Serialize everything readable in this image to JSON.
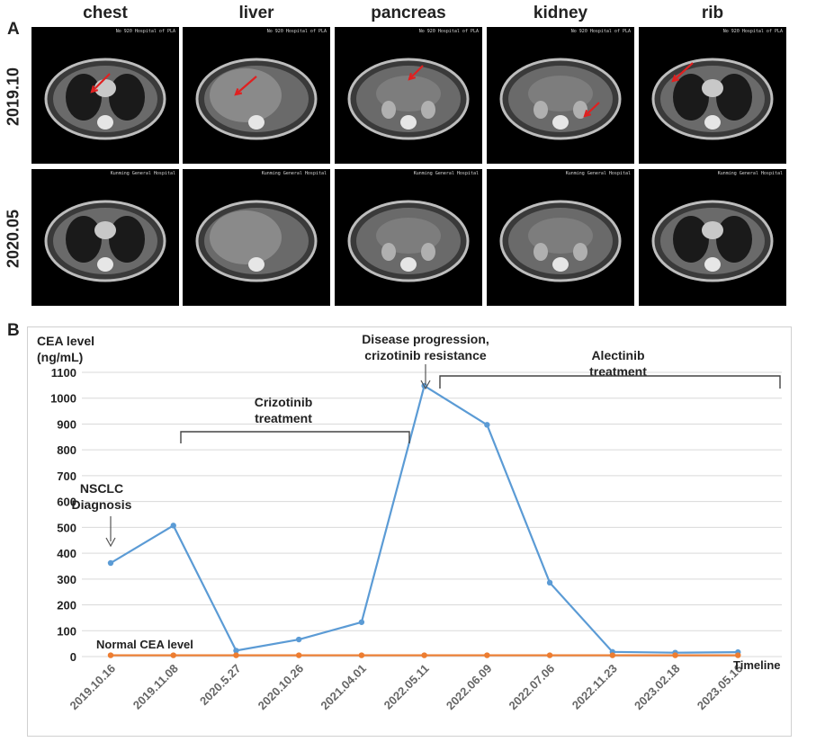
{
  "panel_a": {
    "label": "A",
    "columns": [
      "chest",
      "liver",
      "pancreas",
      "kidney",
      "rib"
    ],
    "rows": [
      "2019.10",
      "2020.05"
    ],
    "scan_hospital_row1": "No 920 Hospital of PLA",
    "scan_hospital_row2": "Kunming General Hospital"
  },
  "panel_b": {
    "label": "B"
  },
  "colors": {
    "cea_series": "#5b9bd5",
    "normal_series": "#ed7d31",
    "arrow_red": "#e02020"
  },
  "chart_data": {
    "type": "line",
    "ylabel_line1": "CEA level",
    "ylabel_line2": "(ng/mL)",
    "xlabel": "Timeline",
    "ylim": [
      0,
      1100
    ],
    "yticks": [
      0,
      100,
      200,
      300,
      400,
      500,
      600,
      700,
      800,
      900,
      1000,
      1100
    ],
    "categories": [
      "2019.10.16",
      "2019.11.08",
      "2020.5.27",
      "2020.10.26",
      "2021.04.01",
      "2022.05.11",
      "2022.06.09",
      "2022.07.06",
      "2022.11.23",
      "2023.02.18",
      "2023.05.16"
    ],
    "series": [
      {
        "values": [
          362,
          507,
          23,
          66,
          133,
          1048,
          897,
          286,
          18,
          15,
          17
        ]
      },
      {
        "values": [
          5,
          5,
          5,
          5,
          5,
          5,
          5,
          5,
          5,
          5,
          5
        ]
      }
    ],
    "annotations": {
      "nsclc_line1": "NSCLC",
      "nsclc_line2": "Diagnosis",
      "progression_line1": "Disease progression,",
      "progression_line2": "crizotinib resistance",
      "crizotinib_line1": "Crizotinib",
      "crizotinib_line2": "treatment",
      "alectinib_line1": "Alectinib",
      "alectinib_line2": "treatment",
      "normal_label": "Normal CEA level"
    },
    "grid": true
  }
}
